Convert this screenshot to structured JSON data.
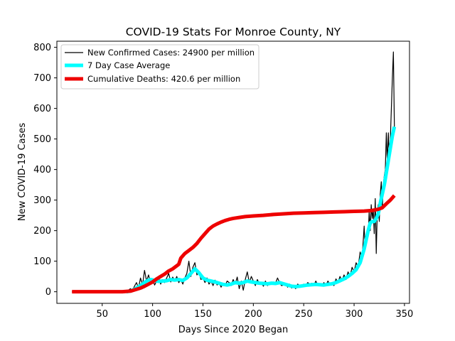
{
  "chart_data": {
    "type": "line",
    "title": "COVID-19 Stats For Monroe County, NY",
    "xlabel": "Days Since 2020 Began",
    "ylabel": "New COVID-19 Cases",
    "xlim": [
      5,
      355
    ],
    "ylim": [
      -38,
      820
    ],
    "xticks": [
      50,
      100,
      150,
      200,
      250,
      300,
      350
    ],
    "yticks": [
      0,
      100,
      200,
      300,
      400,
      500,
      600,
      700,
      800
    ],
    "grid": false,
    "legend_position": "top-left",
    "series": [
      {
        "name": "New Confirmed Cases: 24900 per million",
        "color": "#000000",
        "style": "thin",
        "points": [
          [
            20,
            0
          ],
          [
            70,
            0
          ],
          [
            74,
            2
          ],
          [
            76,
            5
          ],
          [
            78,
            10
          ],
          [
            80,
            4
          ],
          [
            82,
            18
          ],
          [
            84,
            30
          ],
          [
            86,
            12
          ],
          [
            88,
            45
          ],
          [
            90,
            22
          ],
          [
            92,
            70
          ],
          [
            94,
            35
          ],
          [
            96,
            55
          ],
          [
            98,
            28
          ],
          [
            100,
            42
          ],
          [
            102,
            22
          ],
          [
            104,
            35
          ],
          [
            106,
            48
          ],
          [
            108,
            25
          ],
          [
            110,
            40
          ],
          [
            112,
            30
          ],
          [
            114,
            45
          ],
          [
            116,
            60
          ],
          [
            118,
            32
          ],
          [
            120,
            48
          ],
          [
            122,
            35
          ],
          [
            124,
            50
          ],
          [
            126,
            30
          ],
          [
            128,
            40
          ],
          [
            130,
            25
          ],
          [
            132,
            45
          ],
          [
            134,
            60
          ],
          [
            136,
            100
          ],
          [
            138,
            50
          ],
          [
            140,
            80
          ],
          [
            142,
            95
          ],
          [
            144,
            55
          ],
          [
            146,
            65
          ],
          [
            148,
            40
          ],
          [
            150,
            45
          ],
          [
            152,
            30
          ],
          [
            154,
            45
          ],
          [
            156,
            25
          ],
          [
            158,
            35
          ],
          [
            160,
            20
          ],
          [
            162,
            38
          ],
          [
            164,
            22
          ],
          [
            166,
            30
          ],
          [
            168,
            15
          ],
          [
            170,
            28
          ],
          [
            172,
            20
          ],
          [
            174,
            35
          ],
          [
            176,
            30
          ],
          [
            178,
            20
          ],
          [
            180,
            40
          ],
          [
            182,
            25
          ],
          [
            184,
            48
          ],
          [
            186,
            10
          ],
          [
            188,
            35
          ],
          [
            190,
            5
          ],
          [
            192,
            40
          ],
          [
            194,
            65
          ],
          [
            196,
            30
          ],
          [
            198,
            50
          ],
          [
            200,
            35
          ],
          [
            202,
            20
          ],
          [
            204,
            40
          ],
          [
            206,
            25
          ],
          [
            208,
            30
          ],
          [
            210,
            18
          ],
          [
            212,
            35
          ],
          [
            214,
            20
          ],
          [
            216,
            28
          ],
          [
            218,
            25
          ],
          [
            220,
            32
          ],
          [
            222,
            28
          ],
          [
            224,
            45
          ],
          [
            226,
            30
          ],
          [
            228,
            20
          ],
          [
            230,
            22
          ],
          [
            232,
            28
          ],
          [
            234,
            15
          ],
          [
            236,
            25
          ],
          [
            238,
            12
          ],
          [
            240,
            18
          ],
          [
            242,
            10
          ],
          [
            244,
            25
          ],
          [
            246,
            20
          ],
          [
            248,
            18
          ],
          [
            250,
            25
          ],
          [
            252,
            20
          ],
          [
            254,
            30
          ],
          [
            256,
            25
          ],
          [
            258,
            28
          ],
          [
            260,
            20
          ],
          [
            262,
            35
          ],
          [
            264,
            22
          ],
          [
            266,
            25
          ],
          [
            268,
            18
          ],
          [
            270,
            30
          ],
          [
            272,
            20
          ],
          [
            274,
            35
          ],
          [
            276,
            25
          ],
          [
            278,
            30
          ],
          [
            280,
            20
          ],
          [
            282,
            42
          ],
          [
            284,
            30
          ],
          [
            286,
            50
          ],
          [
            288,
            35
          ],
          [
            290,
            55
          ],
          [
            292,
            40
          ],
          [
            294,
            65
          ],
          [
            296,
            50
          ],
          [
            298,
            80
          ],
          [
            300,
            65
          ],
          [
            302,
            95
          ],
          [
            304,
            80
          ],
          [
            306,
            130
          ],
          [
            308,
            110
          ],
          [
            310,
            215
          ],
          [
            311,
            140
          ],
          [
            312,
            170
          ],
          [
            313,
            200
          ],
          [
            314,
            180
          ],
          [
            315,
            265
          ],
          [
            316,
            200
          ],
          [
            317,
            285
          ],
          [
            318,
            240
          ],
          [
            319,
            270
          ],
          [
            320,
            190
          ],
          [
            321,
            305
          ],
          [
            322,
            125
          ],
          [
            323,
            260
          ],
          [
            324,
            285
          ],
          [
            325,
            230
          ],
          [
            326,
            320
          ],
          [
            327,
            360
          ],
          [
            328,
            270
          ],
          [
            329,
            350
          ],
          [
            330,
            380
          ],
          [
            331,
            400
          ],
          [
            332,
            520
          ],
          [
            333,
            420
          ],
          [
            334,
            520
          ],
          [
            335,
            440
          ],
          [
            336,
            500
          ],
          [
            337,
            600
          ],
          [
            338,
            700
          ],
          [
            339,
            785
          ],
          [
            340,
            540
          ]
        ]
      },
      {
        "name": "7 Day Case Average",
        "color": "#00ffff",
        "style": "thick",
        "points": [
          [
            74,
            0
          ],
          [
            78,
            2
          ],
          [
            82,
            8
          ],
          [
            86,
            16
          ],
          [
            90,
            25
          ],
          [
            94,
            35
          ],
          [
            98,
            40
          ],
          [
            102,
            37
          ],
          [
            106,
            34
          ],
          [
            110,
            35
          ],
          [
            114,
            36
          ],
          [
            118,
            40
          ],
          [
            122,
            38
          ],
          [
            126,
            40
          ],
          [
            130,
            37
          ],
          [
            134,
            45
          ],
          [
            138,
            60
          ],
          [
            142,
            75
          ],
          [
            146,
            62
          ],
          [
            150,
            45
          ],
          [
            154,
            38
          ],
          [
            158,
            35
          ],
          [
            162,
            32
          ],
          [
            166,
            28
          ],
          [
            170,
            24
          ],
          [
            174,
            22
          ],
          [
            178,
            25
          ],
          [
            182,
            30
          ],
          [
            186,
            28
          ],
          [
            190,
            30
          ],
          [
            194,
            35
          ],
          [
            198,
            32
          ],
          [
            202,
            30
          ],
          [
            206,
            28
          ],
          [
            210,
            27
          ],
          [
            214,
            26
          ],
          [
            218,
            28
          ],
          [
            222,
            27
          ],
          [
            226,
            30
          ],
          [
            230,
            26
          ],
          [
            234,
            22
          ],
          [
            238,
            18
          ],
          [
            242,
            17
          ],
          [
            246,
            18
          ],
          [
            250,
            20
          ],
          [
            254,
            22
          ],
          [
            258,
            23
          ],
          [
            262,
            24
          ],
          [
            266,
            23
          ],
          [
            270,
            22
          ],
          [
            274,
            24
          ],
          [
            278,
            26
          ],
          [
            282,
            30
          ],
          [
            286,
            36
          ],
          [
            290,
            42
          ],
          [
            294,
            50
          ],
          [
            298,
            60
          ],
          [
            302,
            72
          ],
          [
            306,
            95
          ],
          [
            310,
            140
          ],
          [
            312,
            170
          ],
          [
            314,
            200
          ],
          [
            316,
            225
          ],
          [
            318,
            230
          ],
          [
            320,
            230
          ],
          [
            322,
            240
          ],
          [
            324,
            255
          ],
          [
            326,
            290
          ],
          [
            328,
            320
          ],
          [
            330,
            350
          ],
          [
            332,
            390
          ],
          [
            334,
            430
          ],
          [
            336,
            470
          ],
          [
            338,
            510
          ],
          [
            340,
            540
          ]
        ]
      },
      {
        "name": "Cumulative Deaths: 420.6 per million",
        "color": "#ee0000",
        "style": "thick",
        "points": [
          [
            20,
            0
          ],
          [
            70,
            0
          ],
          [
            78,
            2
          ],
          [
            84,
            8
          ],
          [
            88,
            12
          ],
          [
            92,
            18
          ],
          [
            96,
            25
          ],
          [
            100,
            32
          ],
          [
            104,
            42
          ],
          [
            108,
            50
          ],
          [
            112,
            58
          ],
          [
            116,
            68
          ],
          [
            120,
            75
          ],
          [
            124,
            85
          ],
          [
            126,
            90
          ],
          [
            128,
            110
          ],
          [
            132,
            125
          ],
          [
            136,
            135
          ],
          [
            140,
            145
          ],
          [
            144,
            158
          ],
          [
            148,
            175
          ],
          [
            152,
            190
          ],
          [
            156,
            205
          ],
          [
            160,
            215
          ],
          [
            164,
            222
          ],
          [
            168,
            228
          ],
          [
            172,
            233
          ],
          [
            176,
            237
          ],
          [
            180,
            240
          ],
          [
            186,
            243
          ],
          [
            192,
            246
          ],
          [
            200,
            248
          ],
          [
            210,
            250
          ],
          [
            220,
            253
          ],
          [
            230,
            255
          ],
          [
            240,
            257
          ],
          [
            250,
            258
          ],
          [
            260,
            259
          ],
          [
            270,
            260
          ],
          [
            280,
            261
          ],
          [
            290,
            262
          ],
          [
            300,
            263
          ],
          [
            310,
            264
          ],
          [
            318,
            266
          ],
          [
            324,
            270
          ],
          [
            328,
            275
          ],
          [
            332,
            288
          ],
          [
            336,
            300
          ],
          [
            340,
            315
          ]
        ]
      }
    ]
  }
}
